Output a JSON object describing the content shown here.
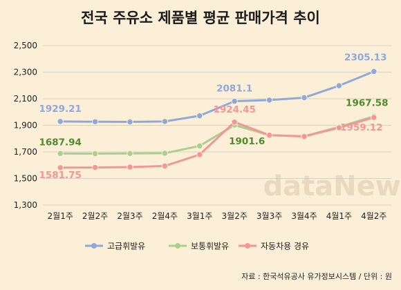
{
  "chart_data": {
    "type": "line",
    "title": "전국 주유소 제품별 평균 판매가격 추이",
    "categories": [
      "2월1주",
      "2월2주",
      "2월3주",
      "2월4주",
      "3월1주",
      "3월2주",
      "3월3주",
      "3월4주",
      "4월1주",
      "4월2주"
    ],
    "ylim": [
      1300,
      2500
    ],
    "yticks": [
      "1,300",
      "1,500",
      "1,700",
      "1,900",
      "2,100",
      "2,300",
      "2,500"
    ],
    "ytick_values": [
      1300,
      1500,
      1700,
      1900,
      2100,
      2300,
      2500
    ],
    "grid": true,
    "legend_position": "bottom",
    "series": [
      {
        "name": "고급휘발유",
        "color": "#8ea8db",
        "values": [
          1929.21,
          1927,
          1926,
          1929,
          1972,
          2081.1,
          2090,
          2108,
          2198,
          2305.13
        ],
        "labels": [
          {
            "index": 0,
            "text": "1929.21"
          },
          {
            "index": 5,
            "text": "2081.1"
          },
          {
            "index": 9,
            "text": "2305.13"
          }
        ]
      },
      {
        "name": "보통휘발유",
        "color": "#a9d18e",
        "values": [
          1687.94,
          1687,
          1688,
          1690,
          1745,
          1901.6,
          1826,
          1818,
          1888,
          1967.58
        ],
        "labels": [
          {
            "index": 0,
            "text": "1687.94"
          },
          {
            "index": 5,
            "text": "1901.6"
          },
          {
            "index": 9,
            "text": "1967.58"
          }
        ]
      },
      {
        "name": "자동차용 경유",
        "color": "#f4959a",
        "values": [
          1581.75,
          1583,
          1586,
          1594,
          1680,
          1924.45,
          1826,
          1816,
          1882,
          1959.12
        ],
        "labels": [
          {
            "index": 0,
            "text": "1581.75"
          },
          {
            "index": 5,
            "text": "1924.45"
          },
          {
            "index": 9,
            "text": "1959.12"
          }
        ]
      }
    ],
    "label_colors": {
      "고급휘발유": "#8ea8db",
      "보통휘발유": "#4e8a2e",
      "자동차용 경유": "#f4959a"
    }
  },
  "source": "자료 : 한국석유공사 유가정보시스템 / 단위 : 원",
  "watermark": "dataNews"
}
